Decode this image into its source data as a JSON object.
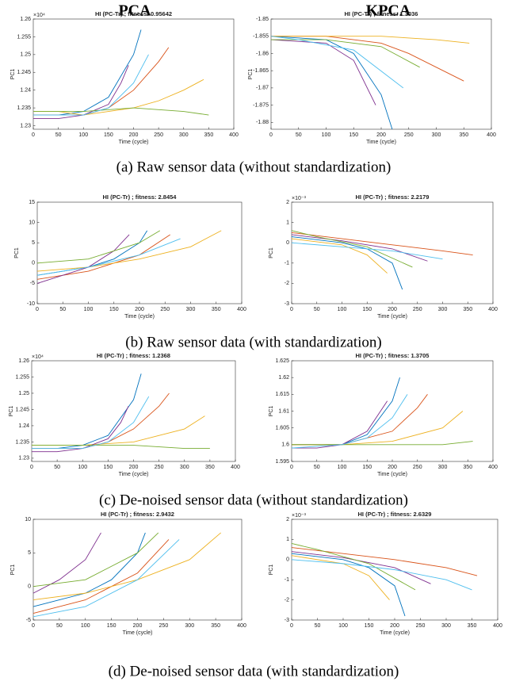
{
  "column_titles": [
    "PCA",
    "KPCA"
  ],
  "captions": [
    "(a)  Raw sensor data (without standardization)",
    "(b)  Raw sensor data (with standardization)",
    "(c)  De-noised sensor data (without standardization)",
    "(d)  De-noised sensor data (with standardization)"
  ],
  "chart_data": [
    {
      "type": "line",
      "title": "HI (PC-Tr) ; fitness: 0.95642",
      "xlabel": "Time (cycle)",
      "ylabel": "PC1",
      "y_exponent": "×10⁴",
      "xlim": [
        0,
        400
      ],
      "xticks": [
        0,
        50,
        100,
        150,
        200,
        250,
        300,
        350,
        400
      ],
      "ylim": [
        1.229,
        1.26
      ],
      "yticks": [
        1.23,
        1.235,
        1.24,
        1.245,
        1.25,
        1.255,
        1.26
      ],
      "series": [
        {
          "color": "#0072BD",
          "x": [
            0,
            50,
            100,
            150,
            200,
            215
          ],
          "values": [
            1.233,
            1.233,
            1.234,
            1.238,
            1.25,
            1.257
          ]
        },
        {
          "color": "#D95319",
          "x": [
            0,
            50,
            100,
            150,
            200,
            250,
            270
          ],
          "values": [
            1.233,
            1.233,
            1.233,
            1.235,
            1.24,
            1.248,
            1.252
          ]
        },
        {
          "color": "#EDB120",
          "x": [
            0,
            50,
            100,
            150,
            200,
            250,
            300,
            340
          ],
          "values": [
            1.234,
            1.234,
            1.233,
            1.234,
            1.235,
            1.237,
            1.24,
            1.243
          ]
        },
        {
          "color": "#7E2F8E",
          "x": [
            0,
            50,
            100,
            150,
            175,
            190
          ],
          "values": [
            1.232,
            1.232,
            1.233,
            1.236,
            1.242,
            1.247
          ]
        },
        {
          "color": "#77AC30",
          "x": [
            0,
            100,
            200,
            300,
            350
          ],
          "values": [
            1.234,
            1.234,
            1.235,
            1.234,
            1.233
          ]
        },
        {
          "color": "#4DBEEE",
          "x": [
            0,
            100,
            150,
            200,
            230
          ],
          "values": [
            1.233,
            1.233,
            1.235,
            1.242,
            1.25
          ]
        }
      ]
    },
    {
      "type": "line",
      "title": "HI (PC-Tr) ; fitness: 1.3036",
      "xlabel": "Time (cycle)",
      "ylabel": "PC1",
      "xlim": [
        0,
        400
      ],
      "xticks": [
        0,
        50,
        100,
        150,
        200,
        250,
        300,
        350,
        400
      ],
      "ylim": [
        -1.882,
        -1.85
      ],
      "yticks": [
        -1.88,
        -1.875,
        -1.87,
        -1.865,
        -1.86,
        -1.855,
        -1.85
      ],
      "series": [
        {
          "color": "#0072BD",
          "x": [
            0,
            100,
            150,
            200,
            220
          ],
          "values": [
            -1.855,
            -1.856,
            -1.86,
            -1.872,
            -1.882
          ]
        },
        {
          "color": "#D95319",
          "x": [
            0,
            100,
            200,
            250,
            300,
            350
          ],
          "values": [
            -1.855,
            -1.855,
            -1.857,
            -1.86,
            -1.864,
            -1.868
          ]
        },
        {
          "color": "#EDB120",
          "x": [
            0,
            100,
            200,
            300,
            360
          ],
          "values": [
            -1.855,
            -1.855,
            -1.855,
            -1.856,
            -1.857
          ]
        },
        {
          "color": "#7E2F8E",
          "x": [
            0,
            100,
            150,
            190
          ],
          "values": [
            -1.856,
            -1.857,
            -1.862,
            -1.875
          ]
        },
        {
          "color": "#77AC30",
          "x": [
            0,
            100,
            200,
            270
          ],
          "values": [
            -1.856,
            -1.856,
            -1.858,
            -1.864
          ]
        },
        {
          "color": "#4DBEEE",
          "x": [
            0,
            50,
            150,
            240
          ],
          "values": [
            -1.855,
            -1.856,
            -1.859,
            -1.87
          ]
        }
      ]
    },
    {
      "type": "line",
      "title": "HI (PC-Tr) ; fitness: 2.8454",
      "xlabel": "Time (cycle)",
      "ylabel": "PC1",
      "xlim": [
        0,
        400
      ],
      "xticks": [
        0,
        50,
        100,
        150,
        200,
        250,
        300,
        350,
        400
      ],
      "ylim": [
        -10,
        15
      ],
      "yticks": [
        -10,
        -5,
        0,
        5,
        10,
        15
      ],
      "series": [
        {
          "color": "#0072BD",
          "x": [
            0,
            50,
            100,
            150,
            200,
            215
          ],
          "values": [
            -3,
            -2,
            -1,
            1,
            5,
            8
          ]
        },
        {
          "color": "#D95319",
          "x": [
            0,
            100,
            200,
            260
          ],
          "values": [
            -4,
            -2,
            2,
            7
          ]
        },
        {
          "color": "#EDB120",
          "x": [
            0,
            100,
            200,
            300,
            360
          ],
          "values": [
            -2,
            -1,
            1,
            4,
            8
          ]
        },
        {
          "color": "#7E2F8E",
          "x": [
            0,
            50,
            100,
            150,
            180
          ],
          "values": [
            -5,
            -3,
            -1,
            3,
            7
          ]
        },
        {
          "color": "#77AC30",
          "x": [
            0,
            100,
            150,
            200,
            240
          ],
          "values": [
            0,
            1,
            3,
            5,
            8
          ]
        },
        {
          "color": "#4DBEEE",
          "x": [
            0,
            100,
            200,
            280
          ],
          "values": [
            -3,
            -1,
            2,
            6
          ]
        }
      ]
    },
    {
      "type": "line",
      "title": "HI (PC-Tr) ; fitness: 2.2179",
      "xlabel": "Time (cycle)",
      "ylabel": "PC1",
      "y_exponent": "×10⁻³",
      "xlim": [
        0,
        400
      ],
      "xticks": [
        0,
        50,
        100,
        150,
        200,
        250,
        300,
        350,
        400
      ],
      "ylim": [
        -3,
        2
      ],
      "yticks": [
        -3,
        -2,
        -1,
        0,
        1,
        2
      ],
      "series": [
        {
          "color": "#0072BD",
          "x": [
            0,
            100,
            150,
            200,
            220
          ],
          "values": [
            0.3,
            0,
            -0.3,
            -1,
            -2.3
          ]
        },
        {
          "color": "#D95319",
          "x": [
            0,
            100,
            200,
            300,
            360
          ],
          "values": [
            0.5,
            0.2,
            -0.1,
            -0.4,
            -0.6
          ]
        },
        {
          "color": "#EDB120",
          "x": [
            0,
            100,
            150,
            190
          ],
          "values": [
            0.2,
            -0.1,
            -0.6,
            -1.5
          ]
        },
        {
          "color": "#7E2F8E",
          "x": [
            0,
            100,
            200,
            270
          ],
          "values": [
            0.4,
            0.1,
            -0.3,
            -0.9
          ]
        },
        {
          "color": "#77AC30",
          "x": [
            0,
            50,
            150,
            240
          ],
          "values": [
            0.6,
            0.3,
            -0.2,
            -1.2
          ]
        },
        {
          "color": "#4DBEEE",
          "x": [
            0,
            100,
            200,
            300
          ],
          "values": [
            0,
            -0.2,
            -0.4,
            -0.8
          ]
        }
      ]
    },
    {
      "type": "line",
      "title": "HI (PC-Tr) ; fitness: 1.2368",
      "xlabel": "Time (cycle)",
      "ylabel": "PC1",
      "y_exponent": "×10⁴",
      "xlim": [
        0,
        400
      ],
      "xticks": [
        0,
        50,
        100,
        150,
        200,
        250,
        300,
        350,
        400
      ],
      "ylim": [
        1.229,
        1.26
      ],
      "yticks": [
        1.23,
        1.235,
        1.24,
        1.245,
        1.25,
        1.255,
        1.26
      ],
      "series": [
        {
          "color": "#0072BD",
          "x": [
            0,
            50,
            100,
            150,
            200,
            215
          ],
          "values": [
            1.233,
            1.233,
            1.234,
            1.237,
            1.248,
            1.256
          ]
        },
        {
          "color": "#D95319",
          "x": [
            0,
            50,
            100,
            150,
            200,
            250,
            270
          ],
          "values": [
            1.233,
            1.233,
            1.233,
            1.235,
            1.239,
            1.246,
            1.25
          ]
        },
        {
          "color": "#EDB120",
          "x": [
            0,
            100,
            200,
            300,
            340
          ],
          "values": [
            1.234,
            1.234,
            1.235,
            1.239,
            1.243
          ]
        },
        {
          "color": "#7E2F8E",
          "x": [
            0,
            50,
            100,
            150,
            175,
            190
          ],
          "values": [
            1.232,
            1.232,
            1.233,
            1.236,
            1.241,
            1.246
          ]
        },
        {
          "color": "#77AC30",
          "x": [
            0,
            100,
            200,
            300,
            350
          ],
          "values": [
            1.234,
            1.234,
            1.234,
            1.233,
            1.233
          ]
        },
        {
          "color": "#4DBEEE",
          "x": [
            0,
            100,
            150,
            200,
            230
          ],
          "values": [
            1.233,
            1.233,
            1.235,
            1.241,
            1.249
          ]
        }
      ]
    },
    {
      "type": "line",
      "title": "HI (PC-Tr) ; fitness: 1.3705",
      "xlabel": "Time (cycle)",
      "ylabel": "PC1",
      "xlim": [
        0,
        400
      ],
      "xticks": [
        0,
        50,
        100,
        150,
        200,
        250,
        300,
        350,
        400
      ],
      "ylim": [
        1.595,
        1.625
      ],
      "yticks": [
        1.595,
        1.6,
        1.605,
        1.61,
        1.615,
        1.62,
        1.625
      ],
      "series": [
        {
          "color": "#0072BD",
          "x": [
            0,
            100,
            150,
            200,
            215
          ],
          "values": [
            1.6,
            1.6,
            1.603,
            1.613,
            1.62
          ]
        },
        {
          "color": "#D95319",
          "x": [
            0,
            100,
            200,
            250,
            270
          ],
          "values": [
            1.6,
            1.6,
            1.604,
            1.611,
            1.615
          ]
        },
        {
          "color": "#EDB120",
          "x": [
            0,
            100,
            200,
            300,
            340
          ],
          "values": [
            1.6,
            1.6,
            1.601,
            1.605,
            1.61
          ]
        },
        {
          "color": "#7E2F8E",
          "x": [
            0,
            50,
            100,
            150,
            190
          ],
          "values": [
            1.599,
            1.599,
            1.6,
            1.604,
            1.613
          ]
        },
        {
          "color": "#77AC30",
          "x": [
            0,
            100,
            200,
            300,
            360
          ],
          "values": [
            1.6,
            1.6,
            1.6,
            1.6,
            1.601
          ]
        },
        {
          "color": "#4DBEEE",
          "x": [
            0,
            100,
            150,
            200,
            230
          ],
          "values": [
            1.599,
            1.6,
            1.602,
            1.608,
            1.615
          ]
        }
      ]
    },
    {
      "type": "line",
      "title": "HI (PC-Tr) ; fitness: 2.9432",
      "xlabel": "Time (cycle)",
      "ylabel": "PC1",
      "xlim": [
        0,
        400
      ],
      "xticks": [
        0,
        50,
        100,
        150,
        200,
        250,
        300,
        350,
        400
      ],
      "ylim": [
        -5,
        10
      ],
      "yticks": [
        -5,
        0,
        5,
        10
      ],
      "series": [
        {
          "color": "#0072BD",
          "x": [
            0,
            50,
            100,
            150,
            200,
            215
          ],
          "values": [
            -3,
            -2,
            -1,
            1,
            5,
            8
          ]
        },
        {
          "color": "#D95319",
          "x": [
            0,
            100,
            200,
            260
          ],
          "values": [
            -4,
            -2,
            2,
            7
          ]
        },
        {
          "color": "#EDB120",
          "x": [
            0,
            100,
            200,
            300,
            360
          ],
          "values": [
            -2,
            -1,
            1,
            4,
            8
          ]
        },
        {
          "color": "#7E2F8E",
          "x": [
            0,
            50,
            100,
            130
          ],
          "values": [
            -1,
            1,
            4,
            8
          ]
        },
        {
          "color": "#77AC30",
          "x": [
            0,
            100,
            150,
            200,
            240
          ],
          "values": [
            0,
            1,
            3,
            5,
            8
          ]
        },
        {
          "color": "#4DBEEE",
          "x": [
            0,
            100,
            200,
            280
          ],
          "values": [
            -4.5,
            -3,
            1,
            7
          ]
        }
      ]
    },
    {
      "type": "line",
      "title": "HI (PC-Tr) ; fitness: 2.6329",
      "xlabel": "Time (cycle)",
      "ylabel": "PC1",
      "y_exponent": "×10⁻³",
      "xlim": [
        0,
        400
      ],
      "xticks": [
        0,
        50,
        100,
        150,
        200,
        250,
        300,
        350,
        400
      ],
      "ylim": [
        -3,
        2
      ],
      "yticks": [
        -3,
        -2,
        -1,
        0,
        1,
        2
      ],
      "series": [
        {
          "color": "#0072BD",
          "x": [
            0,
            100,
            150,
            200,
            220
          ],
          "values": [
            0.3,
            0,
            -0.4,
            -1.3,
            -2.8
          ]
        },
        {
          "color": "#D95319",
          "x": [
            0,
            100,
            200,
            300,
            360
          ],
          "values": [
            0.6,
            0.3,
            0,
            -0.4,
            -0.8
          ]
        },
        {
          "color": "#EDB120",
          "x": [
            0,
            100,
            150,
            190
          ],
          "values": [
            0.2,
            -0.2,
            -0.8,
            -2
          ]
        },
        {
          "color": "#7E2F8E",
          "x": [
            0,
            100,
            200,
            270
          ],
          "values": [
            0.4,
            0.1,
            -0.4,
            -1.2
          ]
        },
        {
          "color": "#77AC30",
          "x": [
            0,
            50,
            150,
            240
          ],
          "values": [
            0.8,
            0.5,
            -0.2,
            -1.5
          ]
        },
        {
          "color": "#4DBEEE",
          "x": [
            0,
            100,
            200,
            300,
            350
          ],
          "values": [
            0,
            -0.2,
            -0.5,
            -1,
            -1.5
          ]
        }
      ]
    }
  ]
}
